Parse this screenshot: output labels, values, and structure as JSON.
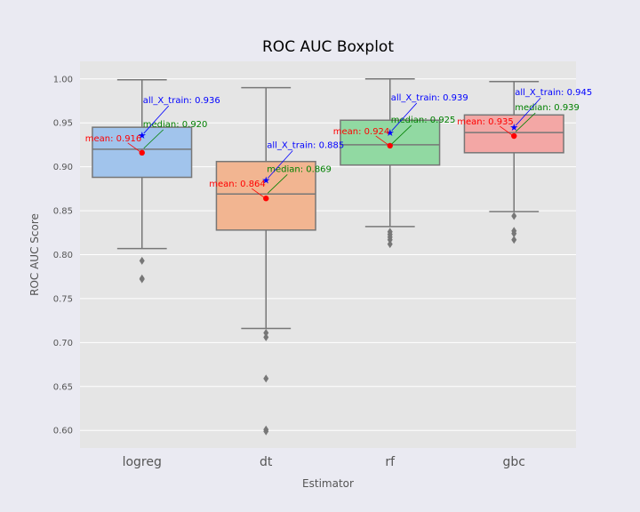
{
  "chart_data": {
    "type": "box",
    "title": "ROC AUC Boxplot",
    "xlabel": "Estimator",
    "ylabel": "ROC AUC Score",
    "ylim": [
      0.58,
      1.02
    ],
    "yticks": [
      "0.60",
      "0.65",
      "0.70",
      "0.75",
      "0.80",
      "0.85",
      "0.90",
      "0.95",
      "1.00"
    ],
    "grid": true,
    "colors": {
      "background": "#eaeaf2",
      "plot_bg": "#e5e5e5",
      "grid": "#ffffff",
      "line": "#777777",
      "mean": "#ff0000",
      "median_text": "#008000",
      "all_train": "#0000ff"
    },
    "categories": [
      "logreg",
      "dt",
      "rf",
      "gbc"
    ],
    "boxes": [
      {
        "name": "logreg",
        "color": "#a1c4ec",
        "whisker_low": 0.807,
        "q1": 0.888,
        "median": 0.92,
        "q3": 0.945,
        "whisker_high": 0.999,
        "outliers": [
          0.793,
          0.773,
          0.772
        ],
        "mean": 0.916,
        "all_x_train": 0.936,
        "mean_label": "mean: 0.916",
        "median_label": "median: 0.920",
        "all_label": "all_X_train: 0.936"
      },
      {
        "name": "dt",
        "color": "#f2b591",
        "whisker_low": 0.716,
        "q1": 0.828,
        "median": 0.869,
        "q3": 0.906,
        "whisker_high": 0.99,
        "outliers": [
          0.711,
          0.706,
          0.659,
          0.601,
          0.599
        ],
        "mean": 0.864,
        "all_x_train": 0.885,
        "mean_label": "mean: 0.864",
        "median_label": "median: 0.869",
        "all_label": "all_X_train: 0.885"
      },
      {
        "name": "rf",
        "color": "#91d9a2",
        "whisker_low": 0.832,
        "q1": 0.902,
        "median": 0.925,
        "q3": 0.953,
        "whisker_high": 1.0,
        "outliers": [
          0.826,
          0.823,
          0.82,
          0.817,
          0.812
        ],
        "mean": 0.924,
        "all_x_train": 0.939,
        "mean_label": "mean: 0.924",
        "median_label": "median: 0.925",
        "all_label": "all_X_train: 0.939"
      },
      {
        "name": "gbc",
        "color": "#f3a7a5",
        "whisker_low": 0.849,
        "q1": 0.916,
        "median": 0.939,
        "q3": 0.959,
        "whisker_high": 0.997,
        "outliers": [
          0.844,
          0.827,
          0.824,
          0.817
        ],
        "mean": 0.935,
        "all_x_train": 0.945,
        "mean_label": "mean: 0.935",
        "median_label": "median: 0.939",
        "all_label": "all_X_train: 0.945"
      }
    ]
  }
}
